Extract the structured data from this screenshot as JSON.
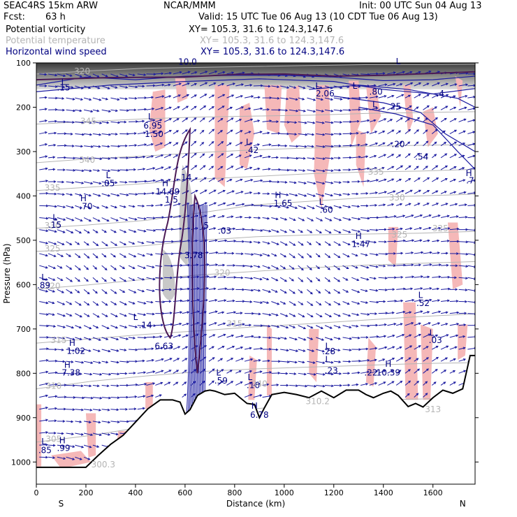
{
  "header": {
    "model": "SEAC4RS 15km ARW",
    "center": "NCAR/MMM",
    "init": "Init: 00 UTC Sun 04 Aug 13",
    "fcst_label": "Fcst:",
    "fcst_value": "63 h",
    "valid": "Valid: 15 UTC Tue 06 Aug 13 (10 CDT Tue 06 Aug 13)",
    "fields": [
      {
        "name": "Potential vorticity",
        "xy": "XY= 105.3, 31.6 to 124.3,147.6",
        "color": "#000000"
      },
      {
        "name": "Potential temperature",
        "xy": "XY= 105.3, 31.6 to 124.3,147.6",
        "color": "#b4b4b4"
      },
      {
        "name": "Horizontal wind speed",
        "xy": "XY= 105.3, 31.6 to 124.3,147.6",
        "color": "#000080"
      }
    ]
  },
  "colors": {
    "terrain": "#000000",
    "pv_contour": "#4b1a55",
    "theta_contour": "#b4b4b4",
    "wind": "#1a1aa0",
    "pink_fill": "#f5b8b8",
    "gray_fill": "#c8c8c8"
  },
  "chart_data": {
    "type": "cross-section",
    "xlabel": "Distance (km)",
    "ylabel": "Pressure (hPa)",
    "x_ticks": [
      0,
      200,
      400,
      600,
      800,
      1000,
      1200,
      1400,
      1600
    ],
    "y_ticks": [
      100,
      200,
      300,
      400,
      500,
      600,
      700,
      800,
      900,
      1000
    ],
    "xlim": [
      0,
      1770
    ],
    "ylim": [
      1050,
      100
    ],
    "y_scale": "linear (inverted)",
    "left_end_label": "S",
    "right_end_label": "N",
    "terrain": {
      "x": [
        0,
        100,
        200,
        250,
        300,
        350,
        400,
        450,
        500,
        550,
        580,
        600,
        620,
        650,
        680,
        700,
        720,
        760,
        800,
        850,
        880,
        900,
        920,
        950,
        1000,
        1050,
        1100,
        1150,
        1200,
        1250,
        1300,
        1330,
        1360,
        1400,
        1430,
        1460,
        1500,
        1530,
        1560,
        1600,
        1640,
        1680,
        1720,
        1750,
        1770
      ],
      "p": [
        1012,
        1012,
        1012,
        985,
        960,
        940,
        910,
        880,
        860,
        860,
        865,
        892,
        882,
        850,
        840,
        838,
        840,
        848,
        845,
        868,
        870,
        900,
        878,
        848,
        843,
        848,
        855,
        840,
        855,
        838,
        838,
        848,
        855,
        845,
        840,
        850,
        875,
        868,
        876,
        855,
        838,
        845,
        835,
        760,
        760
      ]
    },
    "labels": [
      {
        "text": "320",
        "x": 185,
        "p": 125,
        "color": "#b4b4b4"
      },
      {
        "text": "L",
        "x": 110,
        "p": 150,
        "color": "#000080"
      },
      {
        "text": ".15",
        "x": 110,
        "p": 162,
        "color": "#000080"
      },
      {
        "text": "345",
        "x": 210,
        "p": 238,
        "color": "#b4b4b4"
      },
      {
        "text": "340",
        "x": 205,
        "p": 325,
        "color": "#b4b4b4"
      },
      {
        "text": "335",
        "x": 65,
        "p": 388,
        "color": "#b4b4b4"
      },
      {
        "text": "330",
        "x": 65,
        "p": 473,
        "color": "#b4b4b4"
      },
      {
        "text": "325",
        "x": 65,
        "p": 525,
        "color": "#b4b4b4"
      },
      {
        "text": "320",
        "x": 65,
        "p": 610,
        "color": "#b4b4b4"
      },
      {
        "text": "315",
        "x": 90,
        "p": 732,
        "color": "#b4b4b4"
      },
      {
        "text": "310",
        "x": 70,
        "p": 835,
        "color": "#b4b4b4"
      },
      {
        "text": "305",
        "x": 70,
        "p": 955,
        "color": "#b4b4b4"
      },
      {
        "text": "300.3",
        "x": 270,
        "p": 1012,
        "color": "#b4b4b4"
      },
      {
        "text": "L",
        "x": 290,
        "p": 360,
        "color": "#000080"
      },
      {
        "text": ".05",
        "x": 290,
        "p": 378,
        "color": "#000080"
      },
      {
        "text": "H",
        "x": 190,
        "p": 412,
        "color": "#000080"
      },
      {
        "text": ".70",
        "x": 200,
        "p": 430,
        "color": "#000080"
      },
      {
        "text": "L",
        "x": 75,
        "p": 455,
        "color": "#000080"
      },
      {
        "text": ".15",
        "x": 75,
        "p": 472,
        "color": "#000080"
      },
      {
        "text": "L",
        "x": 30,
        "p": 590,
        "color": "#000080"
      },
      {
        "text": ".89",
        "x": 30,
        "p": 608,
        "color": "#000080"
      },
      {
        "text": "L",
        "x": 30,
        "p": 960,
        "color": "#000080"
      },
      {
        "text": ".85",
        "x": 35,
        "p": 980,
        "color": "#000080"
      },
      {
        "text": "H",
        "x": 105,
        "p": 958,
        "color": "#000080"
      },
      {
        "text": ".99",
        "x": 110,
        "p": 975,
        "color": "#000080"
      },
      {
        "text": "H",
        "x": 145,
        "p": 738,
        "color": "#000080"
      },
      {
        "text": "1.02",
        "x": 160,
        "p": 756,
        "color": "#000080"
      },
      {
        "text": "H",
        "x": 125,
        "p": 788,
        "color": "#000080"
      },
      {
        "text": "7.38",
        "x": 140,
        "p": 805,
        "color": "#000080"
      },
      {
        "text": "L",
        "x": 460,
        "p": 228,
        "color": "#000080"
      },
      {
        "text": "6.95",
        "x": 470,
        "p": 248,
        "color": "#000080"
      },
      {
        "text": "1.50",
        "x": 475,
        "p": 267,
        "color": "#000080"
      },
      {
        "text": "H",
        "x": 520,
        "p": 378,
        "color": "#000080"
      },
      {
        "text": "14.69",
        "x": 530,
        "p": 397,
        "color": "#000080"
      },
      {
        "text": "1.5",
        "x": 545,
        "p": 415,
        "color": "#000080"
      },
      {
        "text": ".14",
        "x": 600,
        "p": 365,
        "color": "#000080"
      },
      {
        "text": "L",
        "x": 400,
        "p": 680,
        "color": "#000080"
      },
      {
        "text": ".14",
        "x": 440,
        "p": 698,
        "color": "#000080"
      },
      {
        "text": "6.63",
        "x": 515,
        "p": 745,
        "color": "#000080"
      },
      {
        "text": ".5",
        "x": 680,
        "p": 473,
        "color": "#000080"
      },
      {
        "text": ".03",
        "x": 760,
        "p": 485,
        "color": "#000080"
      },
      {
        "text": "3.78",
        "x": 635,
        "p": 540,
        "color": "#000080"
      },
      {
        "text": "320",
        "x": 750,
        "p": 580,
        "color": "#b4b4b4"
      },
      {
        "text": "315",
        "x": 800,
        "p": 695,
        "color": "#b4b4b4"
      },
      {
        "text": "L",
        "x": 735,
        "p": 805,
        "color": "#000080"
      },
      {
        "text": ".59",
        "x": 745,
        "p": 823,
        "color": "#000080"
      },
      {
        "text": "L",
        "x": 862,
        "p": 815,
        "color": "#000080"
      },
      {
        "text": ".16",
        "x": 875,
        "p": 833,
        "color": "#000080"
      },
      {
        "text": "H",
        "x": 880,
        "p": 880,
        "color": "#000080"
      },
      {
        "text": "6.78",
        "x": 900,
        "p": 900,
        "color": "#000080"
      },
      {
        "text": "340",
        "x": 900,
        "p": 830,
        "color": "#b4b4b4"
      },
      {
        "text": "L",
        "x": 855,
        "p": 285,
        "color": "#000080"
      },
      {
        "text": ".42",
        "x": 870,
        "p": 303,
        "color": "#000080"
      },
      {
        "text": "H",
        "x": 975,
        "p": 405,
        "color": "#000080"
      },
      {
        "text": "1.65",
        "x": 995,
        "p": 423,
        "color": "#000080"
      },
      {
        "text": "L",
        "x": 1150,
        "p": 420,
        "color": "#000080"
      },
      {
        "text": ".60",
        "x": 1170,
        "p": 438,
        "color": "#000080"
      },
      {
        "text": "L",
        "x": 1135,
        "p": 158,
        "color": "#000080"
      },
      {
        "text": "2.06",
        "x": 1165,
        "p": 176,
        "color": "#000080"
      },
      {
        "text": "L",
        "x": 1285,
        "p": 158,
        "color": "#000080"
      },
      {
        "text": ".80",
        "x": 1370,
        "p": 172,
        "color": "#000080"
      },
      {
        "text": "L",
        "x": 1365,
        "p": 200,
        "color": "#000080"
      },
      {
        "text": "25",
        "x": 1450,
        "p": 205,
        "color": "#000080"
      },
      {
        "text": ".20",
        "x": 1460,
        "p": 290,
        "color": "#000080"
      },
      {
        "text": ".54",
        "x": 1555,
        "p": 318,
        "color": "#000080"
      },
      {
        "text": "335",
        "x": 1370,
        "p": 352,
        "color": "#b4b4b4"
      },
      {
        "text": "330",
        "x": 1455,
        "p": 410,
        "color": "#b4b4b4"
      },
      {
        "text": "325",
        "x": 1465,
        "p": 494,
        "color": "#b4b4b4"
      },
      {
        "text": "325",
        "x": 1630,
        "p": 480,
        "color": "#b4b4b4"
      },
      {
        "text": "H",
        "x": 1300,
        "p": 497,
        "color": "#000080"
      },
      {
        "text": "1.47",
        "x": 1310,
        "p": 515,
        "color": "#000080"
      },
      {
        "text": "L",
        "x": 1550,
        "p": 630,
        "color": "#000080"
      },
      {
        "text": ".52",
        "x": 1560,
        "p": 648,
        "color": "#000080"
      },
      {
        "text": "L",
        "x": 1175,
        "p": 745,
        "color": "#000080"
      },
      {
        "text": ".28",
        "x": 1180,
        "p": 757,
        "color": "#000080"
      },
      {
        "text": "L",
        "x": 1175,
        "p": 775,
        "color": "#000080"
      },
      {
        "text": ".23",
        "x": 1190,
        "p": 800,
        "color": "#000080"
      },
      {
        "text": "310.2",
        "x": 1135,
        "p": 870,
        "color": "#b4b4b4"
      },
      {
        "text": "H",
        "x": 1420,
        "p": 785,
        "color": "#000080"
      },
      {
        "text": ".22",
        "x": 1350,
        "p": 805,
        "color": "#000080"
      },
      {
        "text": "10.39",
        "x": 1420,
        "p": 805,
        "color": "#000080"
      },
      {
        "text": "L",
        "x": 1595,
        "p": 715,
        "color": "#000080"
      },
      {
        "text": ".03",
        "x": 1610,
        "p": 732,
        "color": "#000080"
      },
      {
        "text": "313",
        "x": 1600,
        "p": 888,
        "color": "#b4b4b4"
      },
      {
        "text": "H",
        "x": 1745,
        "p": 355,
        "color": "#000080"
      },
      {
        "text": ".7",
        "x": 1750,
        "p": 372,
        "color": "#000080"
      },
      {
        "text": ".4",
        "x": 1630,
        "p": 176,
        "color": "#000080"
      },
      {
        "text": "L",
        "x": 1460,
        "p": 103,
        "color": "#000080"
      },
      {
        "text": "10.0",
        "x": 610,
        "p": 104,
        "color": "#000080"
      }
    ]
  }
}
